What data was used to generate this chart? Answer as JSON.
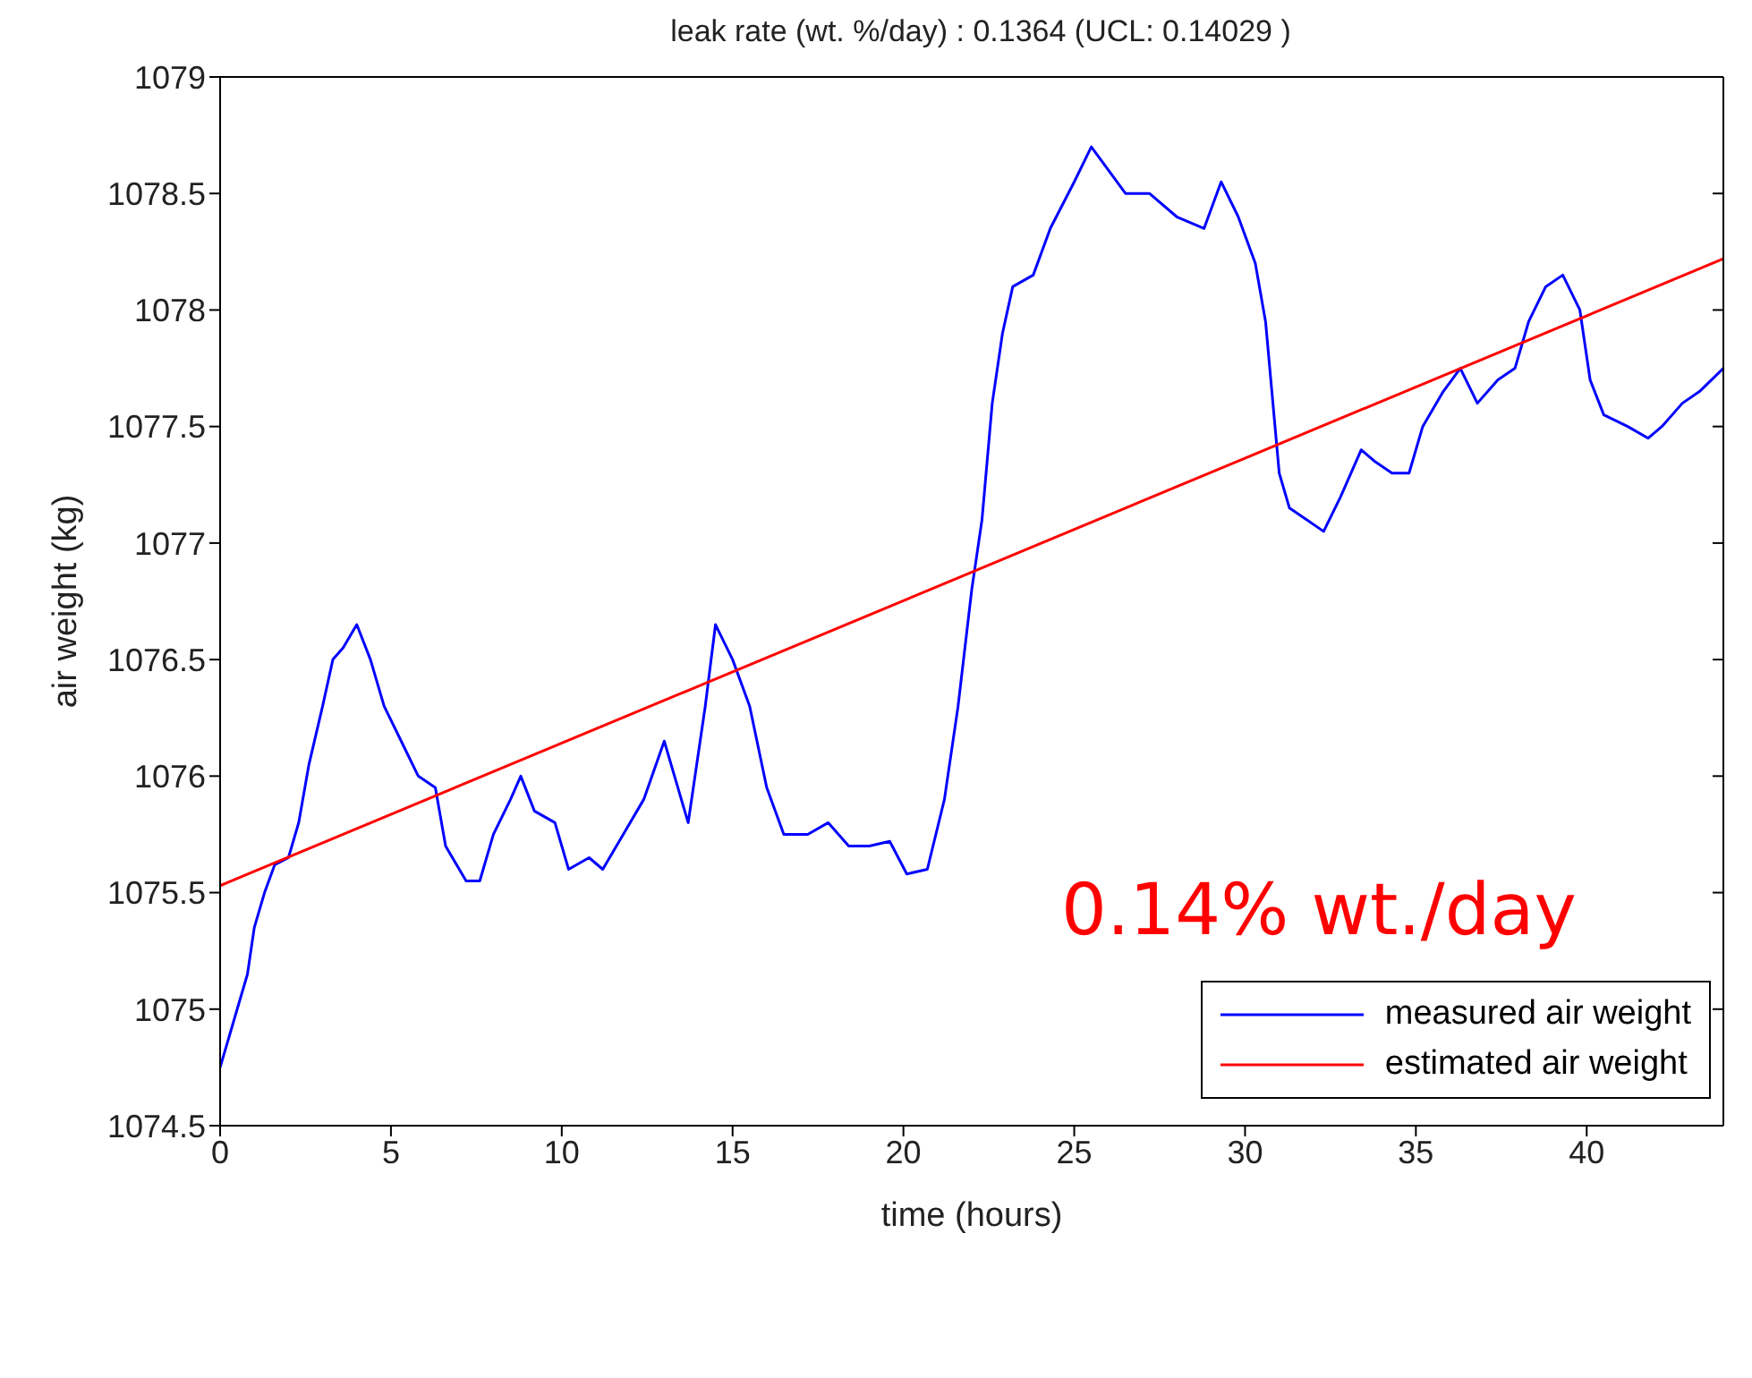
{
  "chart_data": {
    "type": "line",
    "title": "leak rate (wt. %/day) : 0.1364 (UCL: 0.14029 )",
    "xlabel": "time (hours)",
    "ylabel": "air weight (kg)",
    "annotations": [
      "0.14% wt./day"
    ],
    "xlim": [
      0,
      44
    ],
    "xticks": [
      0,
      5,
      10,
      15,
      20,
      25,
      30,
      35,
      40
    ],
    "ylim": [
      1074.5,
      1079
    ],
    "yticks": [
      1074.5,
      1075,
      1075.5,
      1076,
      1076.5,
      1077,
      1077.5,
      1078,
      1078.5,
      1079
    ],
    "grid": false,
    "legend": "bottom right",
    "marker": "none",
    "line_style": "solid",
    "series": [
      {
        "name": "measured air weight",
        "color": "#0000ff",
        "x": [
          0,
          0.2,
          0.5,
          0.8,
          1.0,
          1.3,
          1.6,
          2.0,
          2.3,
          2.6,
          3.0,
          3.3,
          3.6,
          4.0,
          4.4,
          4.8,
          5.3,
          5.8,
          6.3,
          6.6,
          7.2,
          7.6,
          8.0,
          8.5,
          8.8,
          9.2,
          9.8,
          10.2,
          10.8,
          11.2,
          11.8,
          12.4,
          13.0,
          13.4,
          13.7,
          14.2,
          14.5,
          15.0,
          15.5,
          16.0,
          16.5,
          17.2,
          17.8,
          18.4,
          19.0,
          19.6,
          20.1,
          20.7,
          21.2,
          21.6,
          22.0,
          22.3,
          22.6,
          22.9,
          23.2,
          23.8,
          24.3,
          25.0,
          25.5,
          26.0,
          26.5,
          27.2,
          28.0,
          28.8,
          29.3,
          29.8,
          30.3,
          30.6,
          31.0,
          31.3,
          31.8,
          32.3,
          32.8,
          33.4,
          33.8,
          34.3,
          34.8,
          35.2,
          35.8,
          36.3,
          36.8,
          37.4,
          37.9,
          38.3,
          38.8,
          39.3,
          39.8,
          40.1,
          40.5,
          41.2,
          41.8,
          42.2,
          42.8,
          43.3,
          44.0
        ],
        "values": [
          1074.75,
          1074.85,
          1075.0,
          1075.15,
          1075.35,
          1075.5,
          1075.62,
          1075.65,
          1075.8,
          1076.05,
          1076.3,
          1076.5,
          1076.55,
          1076.65,
          1076.5,
          1076.3,
          1076.15,
          1076.0,
          1075.95,
          1075.7,
          1075.55,
          1075.55,
          1075.75,
          1075.9,
          1076.0,
          1075.85,
          1075.8,
          1075.6,
          1075.65,
          1075.6,
          1075.75,
          1075.9,
          1076.15,
          1075.95,
          1075.8,
          1076.3,
          1076.65,
          1076.5,
          1076.3,
          1075.95,
          1075.75,
          1075.75,
          1075.8,
          1075.7,
          1075.7,
          1075.72,
          1075.58,
          1075.6,
          1075.9,
          1076.3,
          1076.8,
          1077.1,
          1077.6,
          1077.9,
          1078.1,
          1078.15,
          1078.35,
          1078.55,
          1078.7,
          1078.6,
          1078.5,
          1078.5,
          1078.4,
          1078.35,
          1078.55,
          1078.4,
          1078.2,
          1077.95,
          1077.3,
          1077.15,
          1077.1,
          1077.05,
          1077.2,
          1077.4,
          1077.35,
          1077.3,
          1077.3,
          1077.5,
          1077.65,
          1077.75,
          1077.6,
          1077.7,
          1077.75,
          1077.95,
          1078.1,
          1078.15,
          1078.0,
          1077.7,
          1077.55,
          1077.5,
          1077.45,
          1077.5,
          1077.6,
          1077.65,
          1077.75
        ]
      },
      {
        "name": "estimated air weight",
        "color": "#ff0000",
        "x": [
          0,
          44
        ],
        "values": [
          1075.53,
          1078.22
        ]
      }
    ]
  }
}
